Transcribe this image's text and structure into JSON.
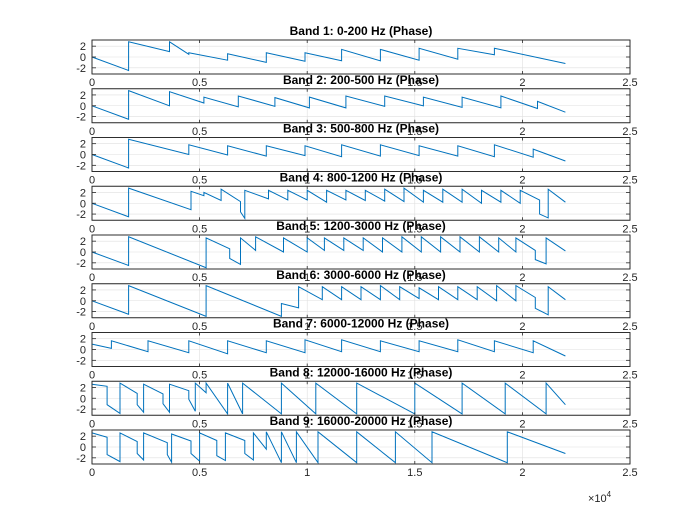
{
  "chart_data": {
    "type": "line",
    "common": {
      "xlim": [
        0,
        25000
      ],
      "ylim": [
        -3.1416,
        3.1416
      ],
      "x_ticks": [
        0,
        5000,
        10000,
        15000,
        20000,
        25000
      ],
      "x_tick_labels": [
        "0",
        "0.5",
        "1",
        "1.5",
        "2",
        "2.5"
      ],
      "y_ticks": [
        -2,
        0,
        2
      ],
      "y_tick_labels": [
        "-2",
        "0",
        "2"
      ],
      "x_exponent_label": "×10",
      "x_exponent_power": "4",
      "grid": true,
      "line_color": "#0072BD"
    },
    "subplots": [
      {
        "title": "Band 1: 0-200 Hz (Phase)",
        "series": [
          {
            "x": [
              0,
              1700,
              1700,
              3600,
              3600,
              4500,
              4500,
              6300,
              6300,
              8100,
              8100,
              9900,
              9900,
              11600,
              11600,
              13400,
              13400,
              15200,
              15200,
              17000,
              17000,
              18700,
              18700,
              22000
            ],
            "y": [
              0,
              -2.5,
              2.8,
              1.0,
              2.8,
              0.5,
              0.8,
              -0.6,
              0.6,
              -1.0,
              0.8,
              -0.8,
              0.8,
              -0.7,
              1.4,
              -0.7,
              1.4,
              -0.6,
              1.6,
              -0.4,
              1.6,
              0.4,
              1.6,
              -1.2
            ]
          }
        ]
      },
      {
        "title": "Band 2: 200-500 Hz (Phase)",
        "series": [
          {
            "x": [
              0,
              1700,
              1700,
              3600,
              3600,
              5200,
              5200,
              6800,
              6800,
              8500,
              8500,
              10100,
              10100,
              11800,
              11800,
              13600,
              13600,
              15400,
              15400,
              17200,
              17200,
              19000,
              19000,
              20700,
              20700,
              22000
            ],
            "y": [
              0,
              -2.5,
              2.8,
              0.0,
              2.6,
              0.5,
              1.6,
              -0.2,
              1.8,
              -0.1,
              1.5,
              -0.4,
              1.6,
              -0.4,
              1.8,
              -0.1,
              1.8,
              0.0,
              1.6,
              -0.3,
              1.6,
              -0.4,
              1.8,
              -0.5,
              0.8,
              -1.2
            ]
          }
        ]
      },
      {
        "title": "Band 3: 500-800 Hz (Phase)",
        "series": [
          {
            "x": [
              0,
              1700,
              1700,
              4500,
              4500,
              6300,
              6300,
              8100,
              8100,
              9900,
              9900,
              11600,
              11600,
              13400,
              13400,
              15200,
              15200,
              17000,
              17000,
              18700,
              18700,
              20500,
              20500,
              22000
            ],
            "y": [
              0,
              -2.5,
              2.8,
              0.0,
              1.8,
              -0.1,
              1.6,
              -0.3,
              1.6,
              -0.2,
              1.6,
              -0.4,
              1.8,
              -0.3,
              1.8,
              -0.2,
              1.6,
              -0.3,
              1.6,
              -0.4,
              1.8,
              -0.5,
              1.0,
              -1.2
            ]
          }
        ]
      },
      {
        "title": "Band 4: 800-1200 Hz (Phase)",
        "series": [
          {
            "x": [
              0,
              1700,
              1700,
              4600,
              4600,
              5200,
              5200,
              6000,
              6000,
              6900,
              6900,
              7100,
              7100,
              8200,
              8200,
              9100,
              9100,
              10000,
              10000,
              10900,
              10900,
              11800,
              11800,
              12700,
              12700,
              13600,
              13600,
              14500,
              14500,
              15400,
              15400,
              16300,
              16300,
              17200,
              17200,
              18100,
              18100,
              19000,
              19000,
              19900,
              19900,
              20800,
              20800,
              21200,
              21200,
              22000
            ],
            "y": [
              0,
              -2.5,
              2.8,
              -1.2,
              2.2,
              1.4,
              2.0,
              0.5,
              2.6,
              0.3,
              -1.6,
              -2.8,
              2.4,
              0.8,
              2.4,
              0.6,
              2.4,
              0.6,
              2.4,
              0.2,
              2.4,
              0.6,
              2.4,
              0.5,
              2.4,
              0.4,
              2.6,
              0.3,
              2.8,
              0.2,
              2.4,
              0.2,
              2.6,
              0.2,
              2.6,
              0.0,
              2.4,
              0.2,
              2.4,
              0.0,
              2.4,
              0.6,
              -2.0,
              -2.7,
              2.6,
              0.2
            ]
          }
        ]
      },
      {
        "title": "Band 5: 1200-3000 Hz (Phase)",
        "series": [
          {
            "x": [
              0,
              1700,
              1700,
              5300,
              5300,
              6400,
              6400,
              6900,
              6900,
              7600,
              7600,
              8900,
              8900,
              10000,
              10000,
              10800,
              10800,
              11700,
              11700,
              12600,
              12600,
              13500,
              13500,
              14400,
              14400,
              15300,
              15300,
              16200,
              16200,
              17100,
              17100,
              18000,
              18000,
              18900,
              18900,
              19700,
              19700,
              20600,
              20600,
              21100,
              21100,
              22000
            ],
            "y": [
              0,
              -2.5,
              2.8,
              -2.9,
              2.6,
              0.6,
              -1.2,
              -2.3,
              2.6,
              0.3,
              2.8,
              0.0,
              2.6,
              0.0,
              2.6,
              0.3,
              2.6,
              0.3,
              2.6,
              0.3,
              2.6,
              0.0,
              2.6,
              0.0,
              2.8,
              0.0,
              2.8,
              0.0,
              2.8,
              0.0,
              2.8,
              0.0,
              2.8,
              0.0,
              2.6,
              0.0,
              2.6,
              0.3,
              -1.4,
              -2.2,
              2.6,
              0.2
            ]
          }
        ]
      },
      {
        "title": "Band 6: 3000-6000 Hz (Phase)",
        "series": [
          {
            "x": [
              0,
              1700,
              1700,
              5300,
              5300,
              8800,
              8800,
              9600,
              9600,
              10700,
              10700,
              11600,
              11600,
              12500,
              12500,
              13400,
              13400,
              14300,
              14300,
              15200,
              15200,
              16100,
              16100,
              17000,
              17000,
              17900,
              17900,
              18800,
              18800,
              19700,
              19700,
              20600,
              20600,
              21200,
              21200,
              22000
            ],
            "y": [
              0,
              -2.5,
              2.8,
              -2.9,
              2.8,
              -2.9,
              -0.5,
              -1.3,
              2.6,
              0.2,
              2.6,
              0.2,
              2.6,
              0.2,
              2.6,
              0.2,
              2.8,
              0.2,
              2.6,
              0.4,
              2.4,
              0.2,
              2.6,
              0.2,
              2.6,
              0.2,
              2.6,
              0.0,
              2.8,
              0.0,
              2.8,
              0.6,
              -1.4,
              -2.6,
              2.6,
              0.2
            ]
          }
        ]
      },
      {
        "title": "Band 7: 6000-12000 Hz (Phase)",
        "series": [
          {
            "x": [
              0,
              900,
              900,
              2600,
              2600,
              4500,
              4500,
              6300,
              6300,
              8100,
              8100,
              9900,
              9900,
              11600,
              11600,
              13400,
              13400,
              15200,
              15200,
              17000,
              17000,
              18700,
              18700,
              20500,
              20500,
              22000
            ],
            "y": [
              1.0,
              0.2,
              1.6,
              -0.4,
              1.6,
              -0.6,
              1.6,
              -0.8,
              1.6,
              -0.6,
              1.6,
              -0.6,
              1.8,
              -0.4,
              1.8,
              -0.4,
              1.6,
              -0.4,
              1.6,
              -0.4,
              1.8,
              -0.4,
              1.6,
              -0.6,
              1.6,
              -1.2
            ]
          }
        ]
      },
      {
        "title": "Band 8: 12000-16000 Hz (Phase)",
        "series": [
          {
            "x": [
              0,
              700,
              700,
              1300,
              1300,
              2100,
              2100,
              2400,
              2400,
              3300,
              3300,
              3600,
              3600,
              4500,
              4500,
              4800,
              4800,
              5300,
              5300,
              6300,
              6300,
              7000,
              7000,
              8800,
              8800,
              10400,
              10400,
              12300,
              12300,
              15000,
              15000,
              17200,
              17200,
              19200,
              19200,
              21100,
              21100,
              22000
            ],
            "y": [
              2.6,
              2.2,
              -1.2,
              -2.8,
              2.8,
              0.9,
              -1.2,
              -2.6,
              2.6,
              0.8,
              -1.0,
              -2.6,
              2.6,
              1.4,
              -0.2,
              -2.4,
              2.8,
              1.0,
              2.8,
              -2.9,
              2.8,
              -2.9,
              2.8,
              -2.9,
              2.8,
              -2.9,
              2.8,
              -2.9,
              2.8,
              -2.9,
              2.8,
              -2.9,
              2.8,
              -2.9,
              2.8,
              -2.9,
              2.8,
              -1.2
            ]
          }
        ]
      },
      {
        "title": "Band 9: 16000-20000 Hz (Phase)",
        "series": [
          {
            "x": [
              0,
              700,
              700,
              1300,
              1300,
              2100,
              2100,
              2400,
              2400,
              3500,
              3500,
              3700,
              3700,
              4600,
              4600,
              5000,
              5000,
              5800,
              5800,
              6200,
              6200,
              7100,
              7100,
              7500,
              7500,
              8100,
              8100,
              8800,
              8800,
              9500,
              9500,
              10500,
              10500,
              12300,
              12300,
              14100,
              14100,
              15800,
              15800,
              19300,
              19300,
              22000
            ],
            "y": [
              2.6,
              1.8,
              -1.4,
              -2.7,
              2.6,
              1.0,
              -1.2,
              -2.4,
              2.6,
              0.8,
              -1.4,
              -2.8,
              2.4,
              1.1,
              -1.2,
              -2.6,
              2.6,
              1.2,
              -1.6,
              -2.5,
              2.6,
              1.2,
              -1.2,
              -2.4,
              2.6,
              -0.4,
              2.8,
              -2.9,
              2.8,
              -2.9,
              2.8,
              -2.9,
              2.8,
              -2.9,
              2.8,
              -2.9,
              2.8,
              -2.9,
              2.8,
              -2.9,
              2.8,
              -1.2
            ]
          }
        ]
      }
    ]
  }
}
